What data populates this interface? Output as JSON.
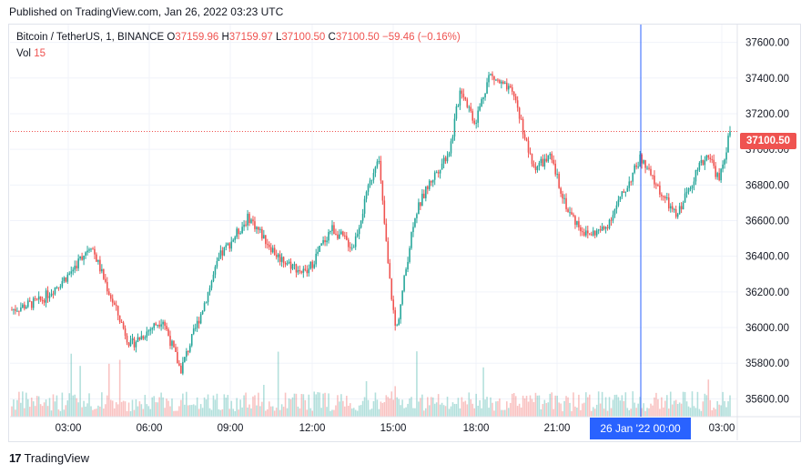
{
  "header": {
    "published": "Published on TradingView.com, Jan 26, 2022 03:23 UTC"
  },
  "legend": {
    "symbol": "Bitcoin / TetherUS, 1, BINANCE",
    "open_label": "O",
    "open": "37159.96",
    "high_label": "H",
    "high": "37159.97",
    "low_label": "L",
    "low": "37100.50",
    "close_label": "C",
    "close": "37100.50",
    "change": "−59.46 (−0.16%)",
    "vol_label": "Vol",
    "vol": "15"
  },
  "last_price_label": "37100.50",
  "crosshair_time_label": "26 Jan '22   00:00",
  "footer": {
    "logo_text": "TradingView"
  },
  "colors": {
    "up": "#26a69a",
    "down": "#ef5350",
    "crosshair": "#2962ff",
    "grid": "#f0f3fa"
  },
  "chart_data": {
    "type": "candlestick",
    "ylim": [
      35500,
      37700
    ],
    "y_ticks": [
      "37600.00",
      "37400.00",
      "37200.00",
      "37000.00",
      "36800.00",
      "36600.00",
      "36400.00",
      "36200.00",
      "36000.00",
      "35800.00",
      "35600.00"
    ],
    "x_ticks": [
      "03:00",
      "06:00",
      "09:00",
      "12:00",
      "15:00",
      "18:00",
      "21:00",
      "03:00"
    ],
    "last_price": 37100.5,
    "price_path": [
      [
        0,
        36100
      ],
      [
        0.04,
        36150
      ],
      [
        0.08,
        36300
      ],
      [
        0.11,
        36470
      ],
      [
        0.135,
        36200
      ],
      [
        0.165,
        35900
      ],
      [
        0.21,
        36050
      ],
      [
        0.235,
        35760
      ],
      [
        0.265,
        36100
      ],
      [
        0.29,
        36400
      ],
      [
        0.33,
        36620
      ],
      [
        0.37,
        36400
      ],
      [
        0.41,
        36300
      ],
      [
        0.445,
        36560
      ],
      [
        0.475,
        36450
      ],
      [
        0.51,
        36980
      ],
      [
        0.525,
        36300
      ],
      [
        0.535,
        35970
      ],
      [
        0.56,
        36620
      ],
      [
        0.58,
        36800
      ],
      [
        0.61,
        37000
      ],
      [
        0.625,
        37350
      ],
      [
        0.645,
        37150
      ],
      [
        0.665,
        37420
      ],
      [
        0.7,
        37300
      ],
      [
        0.725,
        36900
      ],
      [
        0.75,
        36950
      ],
      [
        0.775,
        36650
      ],
      [
        0.8,
        36520
      ],
      [
        0.825,
        36550
      ],
      [
        0.855,
        36780
      ],
      [
        0.875,
        36950
      ],
      [
        0.9,
        36780
      ],
      [
        0.925,
        36620
      ],
      [
        0.95,
        36850
      ],
      [
        0.97,
        36980
      ],
      [
        0.985,
        36820
      ],
      [
        1.0,
        37100
      ]
    ]
  }
}
